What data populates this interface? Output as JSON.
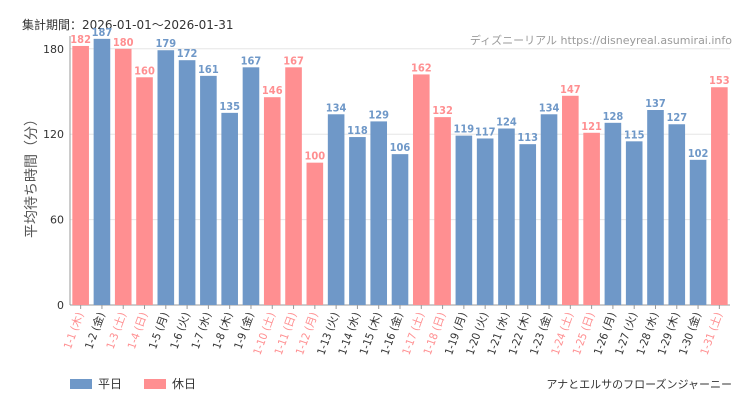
{
  "header": {
    "period": "集計期間：2026-01-01〜2026-01-31",
    "site": "ディズニーリアル https://disneyreal.asumirai.info"
  },
  "footnote": "アナとエルサのフローズンジャーニー",
  "colors": {
    "weekday": "#6f98c8",
    "holiday": "#ff8f91"
  },
  "chart_data": {
    "type": "bar",
    "ylabel": "平均待ち時間（分）",
    "ylim": [
      0,
      180
    ],
    "yticks": [
      0,
      60,
      120,
      180
    ],
    "grid": true,
    "legend": [
      {
        "key": "weekday",
        "label": "平日"
      },
      {
        "key": "holiday",
        "label": "休日"
      }
    ],
    "categories": [
      "1-1 (木)",
      "1-2 (金)",
      "1-3 (土)",
      "1-4 (日)",
      "1-5 (月)",
      "1-6 (火)",
      "1-7 (水)",
      "1-8 (木)",
      "1-9 (金)",
      "1-10 (土)",
      "1-11 (日)",
      "1-12 (月)",
      "1-13 (火)",
      "1-14 (水)",
      "1-15 (木)",
      "1-16 (金)",
      "1-17 (土)",
      "1-18 (日)",
      "1-19 (月)",
      "1-20 (火)",
      "1-21 (水)",
      "1-22 (木)",
      "1-23 (金)",
      "1-24 (土)",
      "1-25 (日)",
      "1-26 (月)",
      "1-27 (火)",
      "1-28 (水)",
      "1-29 (木)",
      "1-30 (金)",
      "1-31 (土)"
    ],
    "values": [
      182,
      187,
      180,
      160,
      179,
      172,
      161,
      135,
      167,
      146,
      167,
      100,
      134,
      118,
      129,
      106,
      162,
      132,
      119,
      117,
      124,
      113,
      134,
      147,
      121,
      128,
      115,
      137,
      127,
      102,
      153
    ],
    "day_type": [
      "holiday",
      "weekday",
      "holiday",
      "holiday",
      "weekday",
      "weekday",
      "weekday",
      "weekday",
      "weekday",
      "holiday",
      "holiday",
      "holiday",
      "weekday",
      "weekday",
      "weekday",
      "weekday",
      "holiday",
      "holiday",
      "weekday",
      "weekday",
      "weekday",
      "weekday",
      "weekday",
      "holiday",
      "holiday",
      "weekday",
      "weekday",
      "weekday",
      "weekday",
      "weekday",
      "holiday"
    ]
  }
}
